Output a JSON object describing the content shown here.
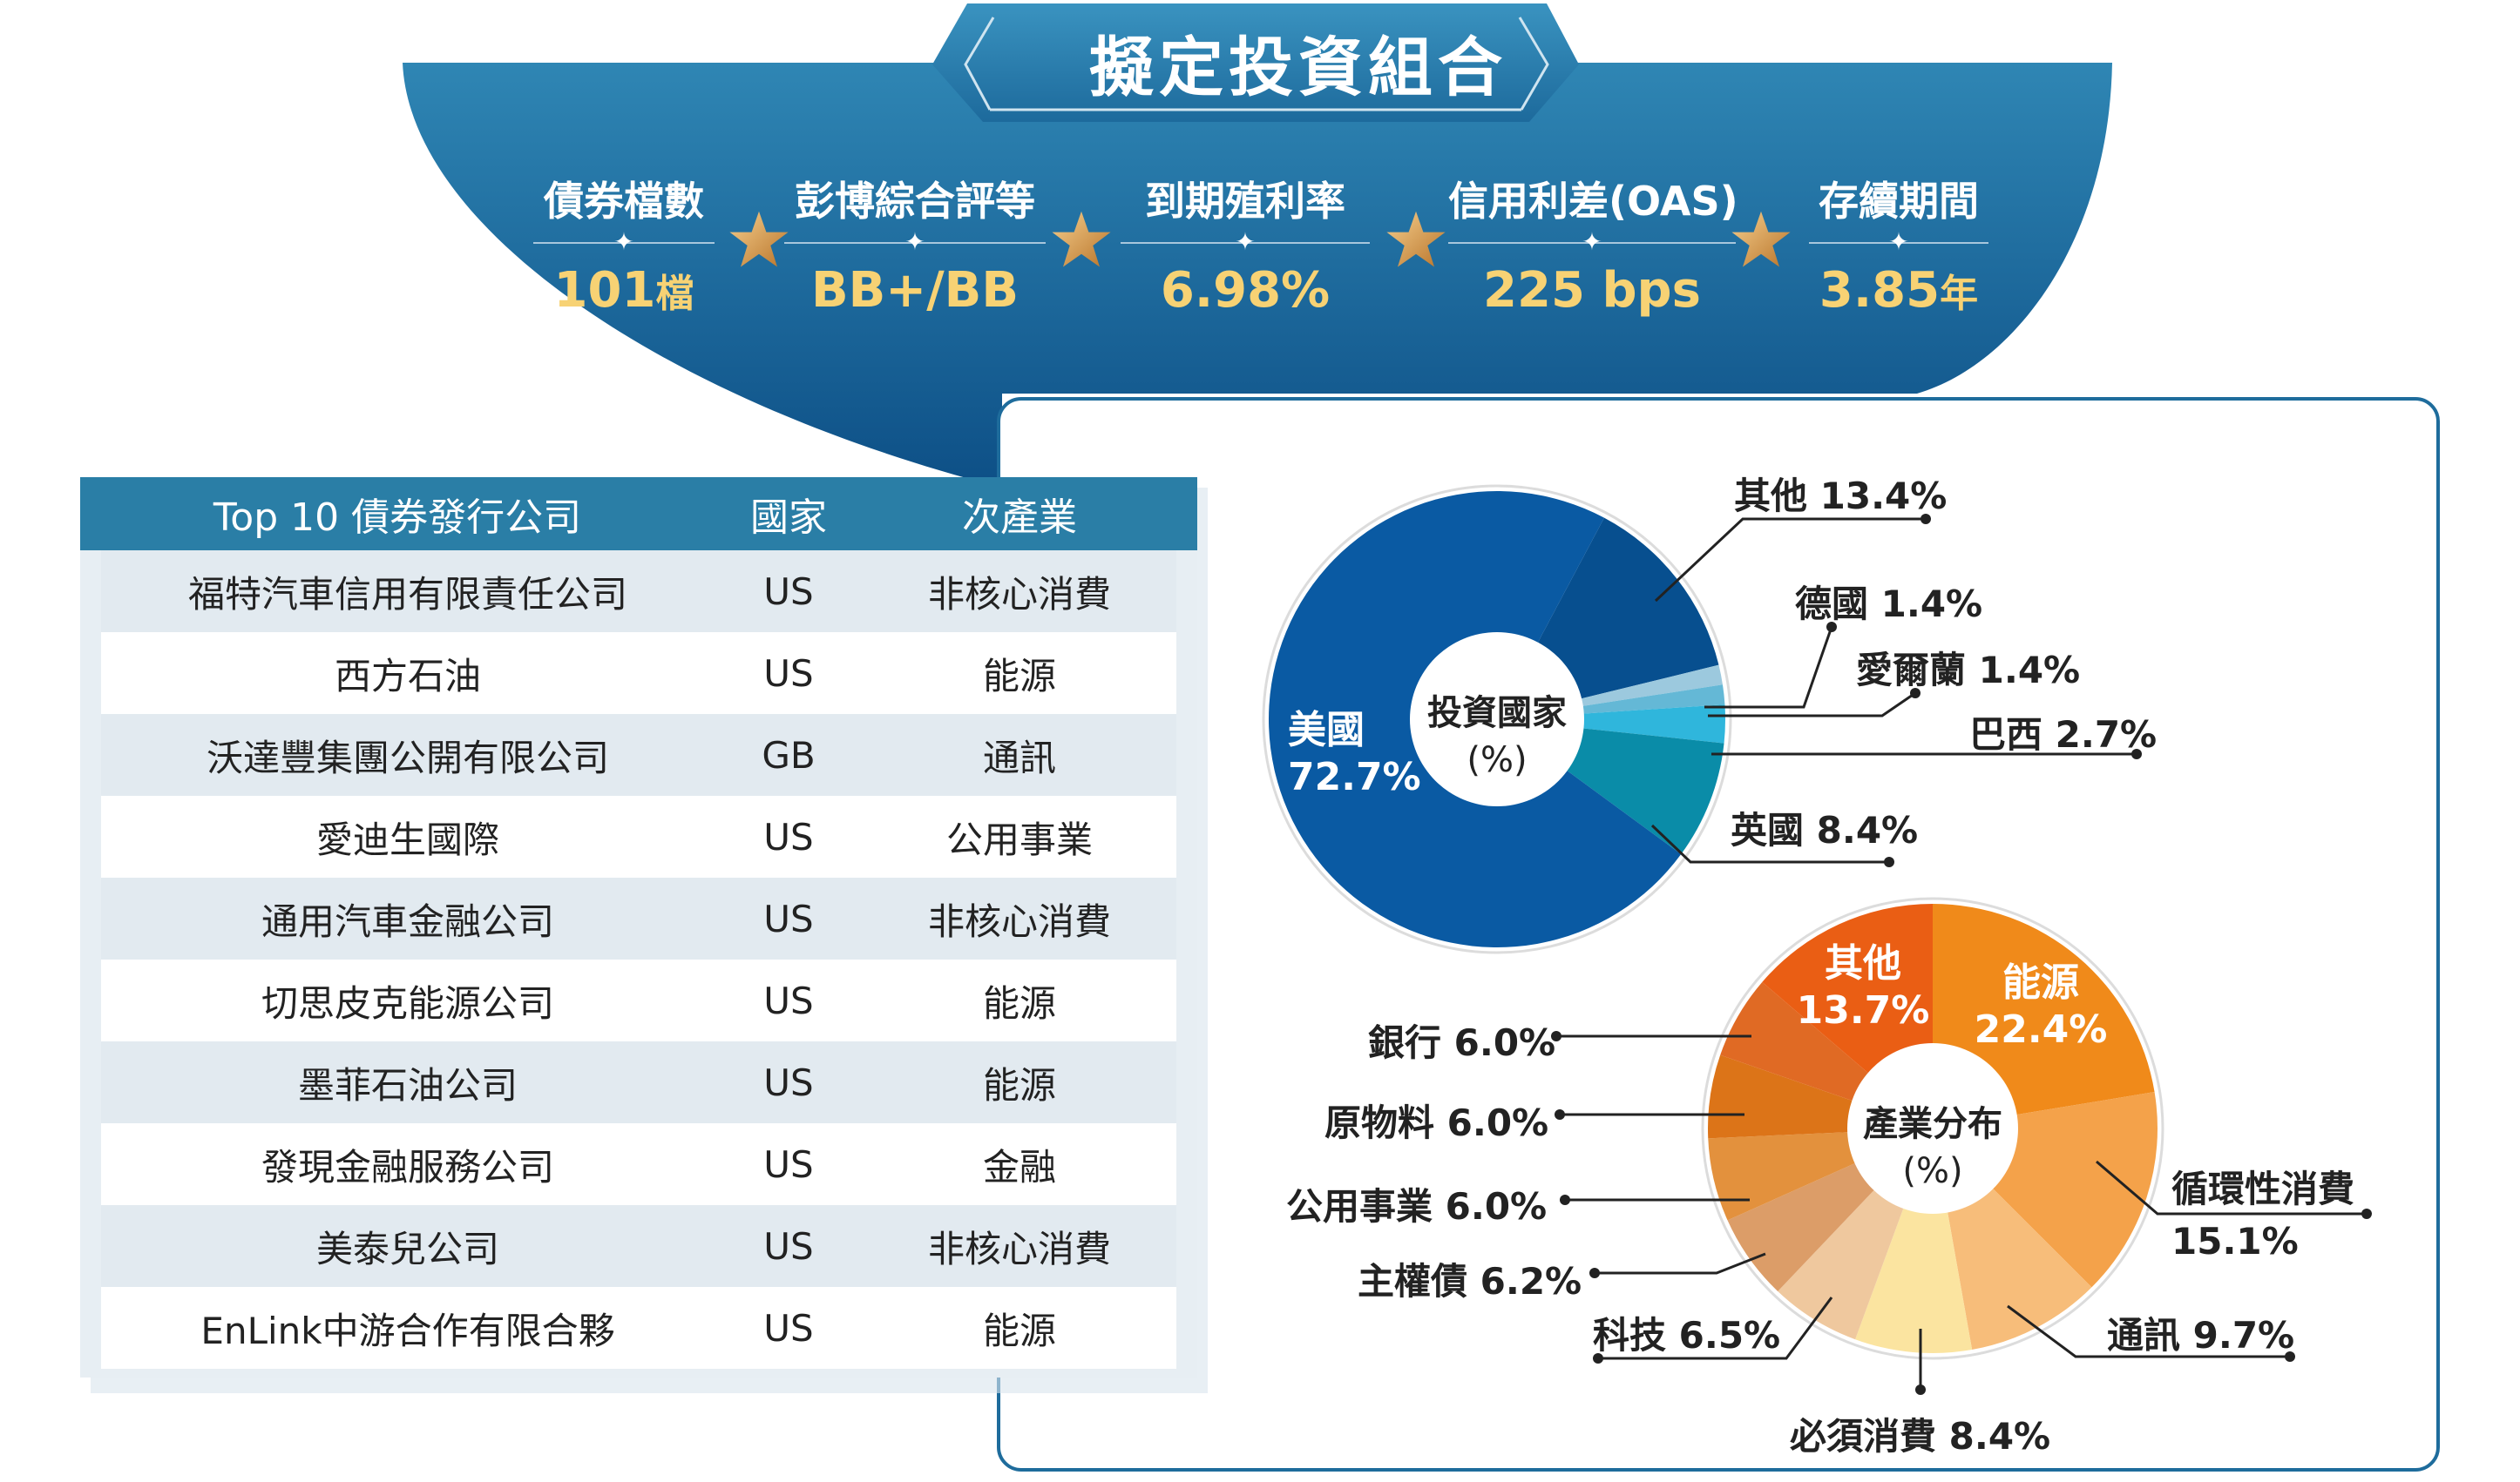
{
  "header": {
    "title": "擬定投資組合",
    "stats": [
      {
        "label": "債券檔數",
        "value": "101",
        "unit": "檔"
      },
      {
        "label": "彭博綜合評等",
        "value": "BB+/BB",
        "unit": ""
      },
      {
        "label": "到期殖利率",
        "value": "6.98%",
        "unit": ""
      },
      {
        "label": "信用利差(OAS)",
        "value": "225 bps",
        "unit": ""
      },
      {
        "label": "存續期間",
        "value": "3.85",
        "unit": "年"
      }
    ]
  },
  "table": {
    "headers": [
      "Top 10 債券發行公司",
      "國家",
      "次產業"
    ],
    "rows": [
      [
        "福特汽車信用有限責任公司",
        "US",
        "非核心消費"
      ],
      [
        "西方石油",
        "US",
        "能源"
      ],
      [
        "沃達豐集團公開有限公司",
        "GB",
        "通訊"
      ],
      [
        "愛迪生國際",
        "US",
        "公用事業"
      ],
      [
        "通用汽車金融公司",
        "US",
        "非核心消費"
      ],
      [
        "切思皮克能源公司",
        "US",
        "能源"
      ],
      [
        "墨菲石油公司",
        "US",
        "能源"
      ],
      [
        "發現金融服務公司",
        "US",
        "金融"
      ],
      [
        "美泰兒公司",
        "US",
        "非核心消費"
      ],
      [
        "EnLink中游合作有限合夥",
        "US",
        "能源"
      ]
    ]
  },
  "chart_data": [
    {
      "type": "pie",
      "title": "投資國家",
      "unit": "(%)",
      "slices": [
        {
          "label": "美國",
          "value": 72.7,
          "color": "#0a5aa3"
        },
        {
          "label": "其他",
          "value": 13.4,
          "color": "#074f8f"
        },
        {
          "label": "德國",
          "value": 1.4,
          "color": "#9cc9de"
        },
        {
          "label": "愛爾蘭",
          "value": 1.4,
          "color": "#64b8d6"
        },
        {
          "label": "巴西",
          "value": 2.7,
          "color": "#2fb6dc"
        },
        {
          "label": "英國",
          "value": 8.4,
          "color": "#0a8ca8"
        }
      ],
      "value_labels": {
        "美國": "72.7%",
        "其他": "13.4%",
        "德國": "1.4%",
        "愛爾蘭": "1.4%",
        "巴西": "2.7%",
        "英國": "8.4%"
      }
    },
    {
      "type": "pie",
      "title": "產業分布",
      "unit": "(%)",
      "slices": [
        {
          "label": "能源",
          "value": 22.4,
          "color": "#f08a1a"
        },
        {
          "label": "循環性消費",
          "value": 15.1,
          "color": "#f4a24a"
        },
        {
          "label": "通訊",
          "value": 9.7,
          "color": "#f7bd7a"
        },
        {
          "label": "必須消費",
          "value": 8.4,
          "color": "#fbe4a0"
        },
        {
          "label": "科技",
          "value": 6.5,
          "color": "#efc89e"
        },
        {
          "label": "主權債",
          "value": 6.2,
          "color": "#dc9d68"
        },
        {
          "label": "公用事業",
          "value": 6.0,
          "color": "#e3913d"
        },
        {
          "label": "原物料",
          "value": 6.0,
          "color": "#dc7418"
        },
        {
          "label": "銀行",
          "value": 6.0,
          "color": "#e06a24"
        },
        {
          "label": "其他",
          "value": 13.7,
          "color": "#ea5e14"
        }
      ],
      "value_labels": {
        "能源": "22.4%",
        "循環性消費": "15.1%",
        "通訊": "9.7%",
        "必須消費": "8.4%",
        "科技": "6.5%",
        "主權債": "6.2%",
        "公用事業": "6.0%",
        "原物料": "6.0%",
        "銀行": "6.0%",
        "其他": "13.7%"
      }
    }
  ]
}
